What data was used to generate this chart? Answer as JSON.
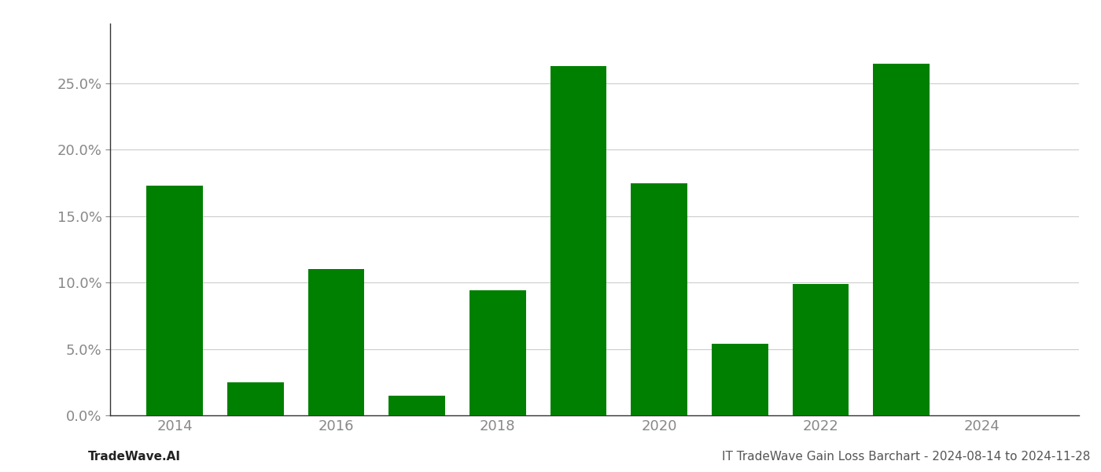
{
  "years": [
    2014,
    2015,
    2016,
    2017,
    2018,
    2019,
    2020,
    2021,
    2022,
    2023,
    2024
  ],
  "values": [
    0.173,
    0.025,
    0.11,
    0.015,
    0.094,
    0.263,
    0.175,
    0.054,
    0.099,
    0.265,
    0.0
  ],
  "bar_color": "#008000",
  "background_color": "#ffffff",
  "grid_color": "#cccccc",
  "ylabel_ticks": [
    0.0,
    0.05,
    0.1,
    0.15,
    0.2,
    0.25
  ],
  "xlabel_ticks": [
    2014,
    2016,
    2018,
    2020,
    2022,
    2024
  ],
  "footer_left": "TradeWave.AI",
  "footer_right": "IT TradeWave Gain Loss Barchart - 2024-08-14 to 2024-11-28",
  "footer_fontsize": 11,
  "tick_fontsize": 13,
  "bar_width": 0.7,
  "ylim_max": 0.295,
  "xlim_min": 2013.2,
  "xlim_max": 2025.2
}
